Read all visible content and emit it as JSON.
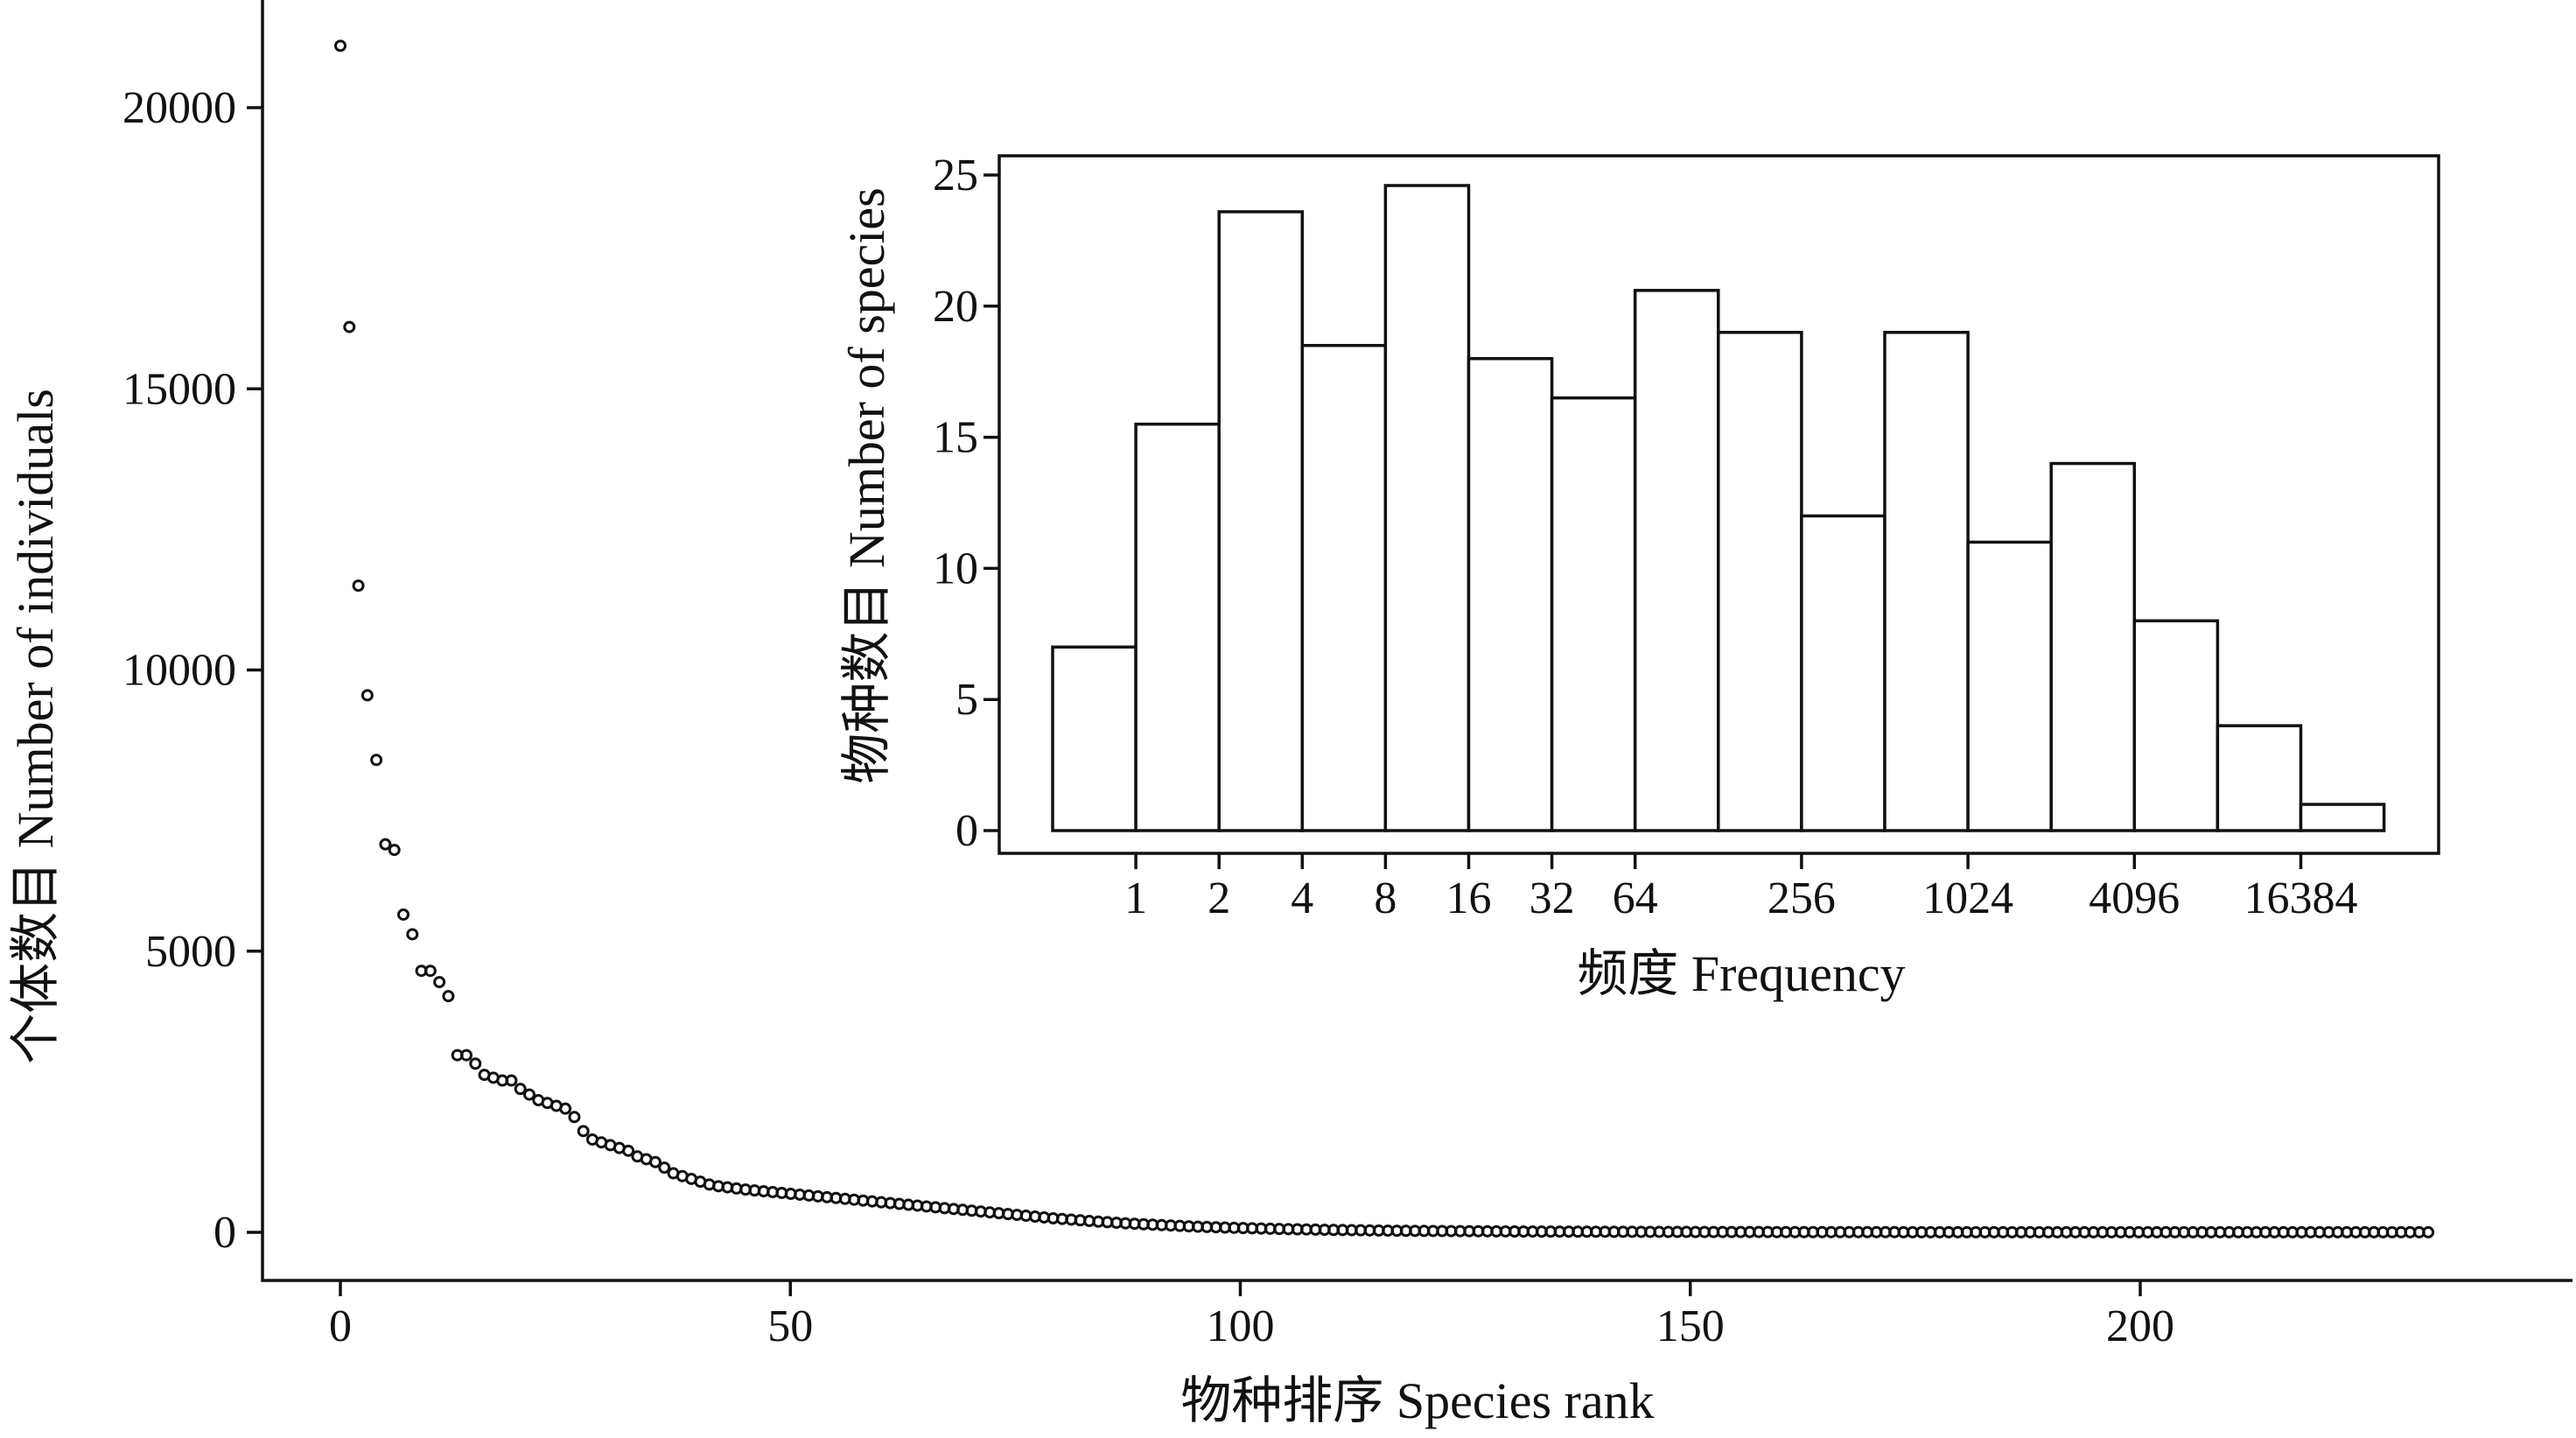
{
  "chart_data": [
    {
      "type": "scatter",
      "xlabel": "物种排序 Species rank",
      "ylabel": "个体数目 Number of individuals",
      "xlim": [
        -8,
        241
      ],
      "ylim": [
        -900,
        22000
      ],
      "xticks": [
        0,
        50,
        100,
        150,
        200
      ],
      "yticks": [
        0,
        5000,
        10000,
        15000,
        20000
      ],
      "head_ranks": [
        0,
        1,
        2,
        3,
        4,
        5,
        6,
        7,
        8,
        9,
        10,
        11,
        12,
        13,
        14,
        15,
        16,
        17,
        18,
        19,
        20,
        21,
        22,
        23,
        24,
        25,
        26,
        27,
        28,
        29,
        30,
        31,
        32,
        33,
        34,
        35,
        36,
        37,
        38,
        39,
        40
      ],
      "head_values": [
        21100,
        16100,
        11500,
        9550,
        8400,
        6900,
        6800,
        5650,
        5300,
        4650,
        4650,
        4450,
        4200,
        3150,
        3150,
        3000,
        2800,
        2750,
        2700,
        2700,
        2550,
        2450,
        2350,
        2300,
        2250,
        2200,
        2050,
        1800,
        1650,
        1600,
        1550,
        1500,
        1450,
        1350,
        1300,
        1250,
        1150,
        1050,
        1000,
        950,
        900
      ],
      "tail_start_rank": 41,
      "tail_end_rank": 232,
      "tail_values": [
        850,
        820,
        800,
        780,
        760,
        745,
        730,
        715,
        700,
        685,
        670,
        655,
        640,
        625,
        610,
        595,
        580,
        565,
        550,
        535,
        520,
        505,
        490,
        475,
        460,
        445,
        430,
        415,
        400,
        385,
        370,
        355,
        340,
        325,
        310,
        295,
        280,
        265,
        250,
        238,
        226,
        214,
        202,
        190,
        180,
        170,
        160,
        152,
        144,
        136,
        128,
        121,
        114,
        107,
        100,
        95,
        90,
        85,
        80,
        76,
        72,
        68,
        64,
        60,
        57,
        54,
        51,
        48,
        45,
        42,
        40,
        38,
        36,
        34,
        32,
        30,
        28,
        27,
        26,
        25,
        24,
        23,
        22,
        21,
        20,
        19,
        18,
        17,
        16,
        15,
        14,
        14,
        13,
        13,
        12,
        12,
        11,
        11,
        10,
        10,
        9,
        9,
        9,
        8,
        8,
        8,
        7,
        7,
        7,
        6,
        6,
        6,
        6,
        5,
        5,
        5,
        5,
        5,
        4,
        4,
        4,
        4,
        4,
        4,
        3,
        3,
        3,
        3,
        3,
        3,
        3,
        3,
        2,
        2,
        2,
        2,
        2,
        2,
        2,
        2,
        2,
        2,
        2,
        2,
        2,
        1,
        1,
        1,
        1,
        1,
        1,
        1,
        1,
        1,
        1,
        1,
        1,
        1,
        1,
        1,
        1,
        1,
        1,
        1,
        1,
        1,
        1,
        1,
        1,
        1,
        1,
        1,
        1,
        1,
        1,
        1,
        1,
        1,
        1,
        1,
        1,
        1,
        1,
        1,
        1,
        1,
        1,
        1,
        1,
        1,
        1
      ]
    },
    {
      "type": "bar",
      "xlabel": "频度 Frequency",
      "ylabel": "物种数目 Number of species",
      "x_tick_labels": [
        "1",
        "2",
        "4",
        "8",
        "16",
        "32",
        "64",
        "256",
        "1024",
        "4096",
        "16384"
      ],
      "y_tick_labels": [
        "0",
        "5",
        "10",
        "15",
        "20",
        "25"
      ],
      "ylim": [
        0,
        25
      ],
      "bins": 16,
      "values": [
        7,
        15.5,
        23.6,
        18.5,
        24.6,
        18,
        16.5,
        20.6,
        19,
        12,
        19,
        11,
        14,
        8,
        4,
        1
      ]
    }
  ]
}
